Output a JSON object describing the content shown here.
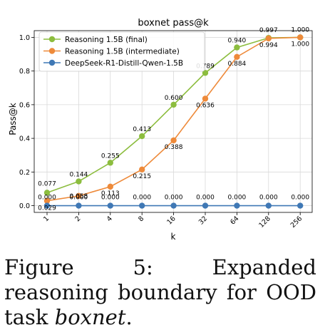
{
  "chart_data": {
    "type": "line",
    "title": "boxnet pass@k",
    "xlabel": "k",
    "ylabel": "Pass@k",
    "x": [
      "1",
      "2",
      "4",
      "8",
      "16",
      "32",
      "64",
      "128",
      "256"
    ],
    "yticks": [
      "0.0",
      "0.2",
      "0.4",
      "0.6",
      "0.8",
      "1.0"
    ],
    "ylim": [
      -0.04,
      1.04
    ],
    "grid": true,
    "legend": "upper-left",
    "series": [
      {
        "name": "Reasoning 1.5B (final)",
        "color": "#8cbd3e",
        "values": [
          0.077,
          0.144,
          0.255,
          0.413,
          0.6,
          0.789,
          0.94,
          0.997,
          1.0
        ],
        "labels": [
          "0.077",
          "0.144",
          "0.255",
          "0.413",
          "0.600",
          "0.789",
          "0.940",
          "0.997",
          "1.000"
        ]
      },
      {
        "name": "Reasoning 1.5B (intermediate)",
        "color": "#ee8a3a",
        "values": [
          0.029,
          0.058,
          0.113,
          0.215,
          0.388,
          0.636,
          0.884,
          0.994,
          1.0
        ],
        "labels": [
          "0.029",
          "0.058",
          "0.113",
          "0.215",
          "0.388",
          "0.636",
          "0.884",
          "0.994",
          "1.000"
        ]
      },
      {
        "name": "DeepSeek-R1-Distill-Qwen-1.5B",
        "color": "#3f78b5",
        "values": [
          0.0,
          0.0,
          0.0,
          0.0,
          0.0,
          0.0,
          0.0,
          0.0,
          0.0
        ],
        "labels": [
          "0.000",
          "0.000",
          "0.000",
          "0.000",
          "0.000",
          "0.000",
          "0.000",
          "0.000",
          "0.000"
        ]
      }
    ]
  },
  "caption": {
    "prefix": "Figure 5:  Expanded reasoning boundary for OOD task ",
    "task": "boxnet",
    "suffix": "."
  }
}
